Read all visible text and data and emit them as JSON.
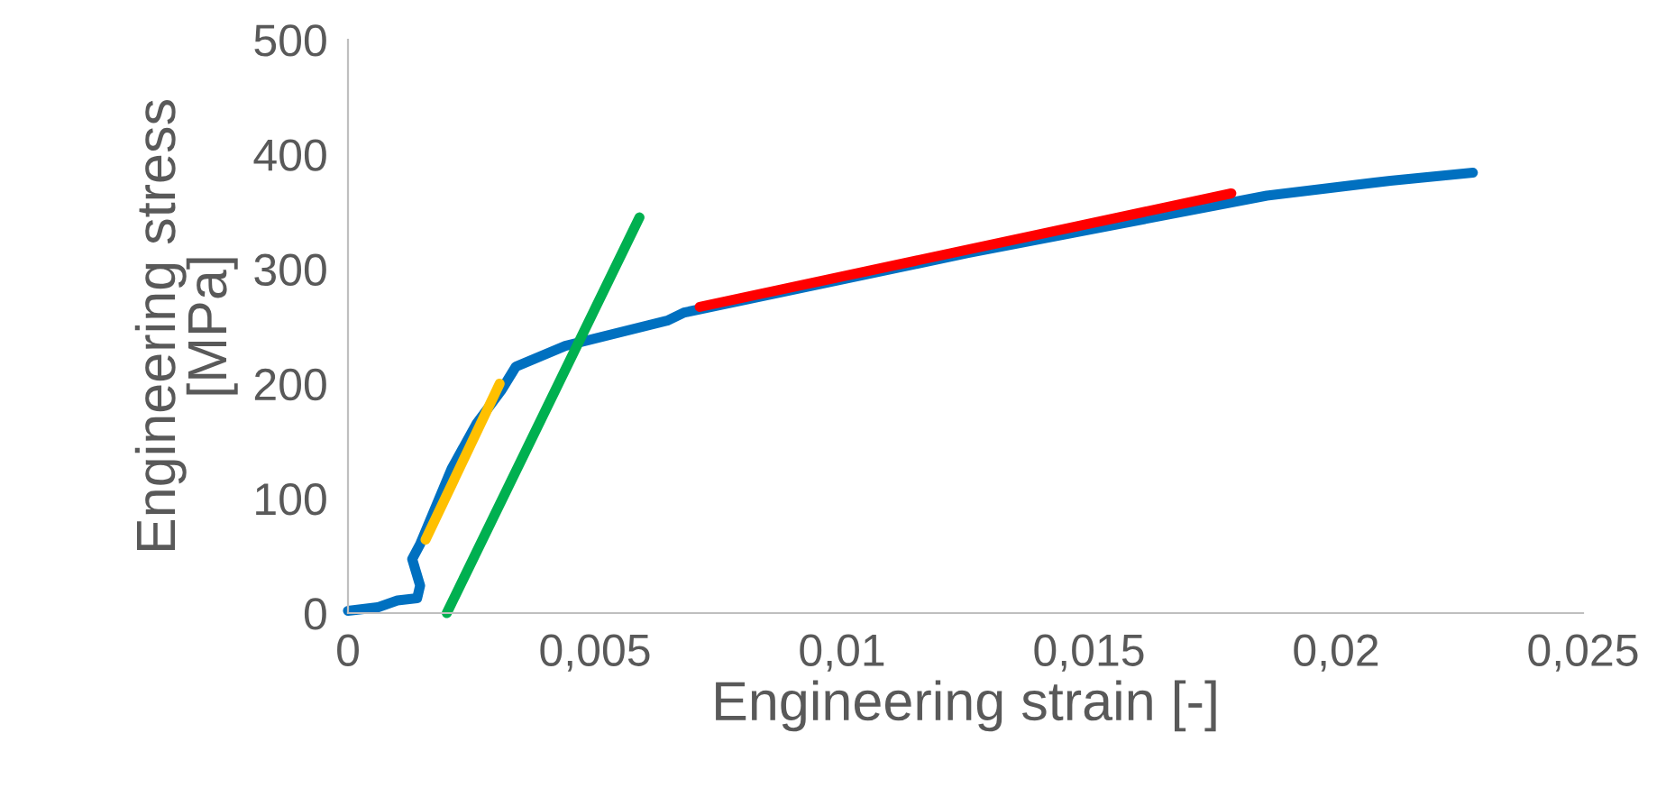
{
  "chart_data": {
    "type": "line",
    "xlabel": "Engineering strain [-]",
    "ylabel": "Engineering stress\n[MPa]",
    "xlim": [
      0,
      0.025
    ],
    "ylim": [
      0,
      500
    ],
    "xticks": [
      {
        "value": 0,
        "label": "0"
      },
      {
        "value": 0.005,
        "label": "0,005"
      },
      {
        "value": 0.01,
        "label": "0,01"
      },
      {
        "value": 0.015,
        "label": "0,015"
      },
      {
        "value": 0.02,
        "label": "0,02"
      },
      {
        "value": 0.025,
        "label": "0,025"
      }
    ],
    "yticks": [
      0,
      100,
      200,
      300,
      400,
      500
    ],
    "grid": false,
    "legend": false,
    "marker": "none",
    "line_style": "solid",
    "series": [
      {
        "color": "#0070c0",
        "x": [
          0,
          0.0006,
          0.001,
          0.0014,
          0.00146,
          0.0013,
          0.00146,
          0.0021,
          0.0026,
          0.0031,
          0.0034,
          0.0044,
          0.00646,
          0.0068,
          0.01255,
          0.0186,
          0.0211,
          0.02277
        ],
        "values": [
          2,
          5,
          11,
          13,
          24,
          47,
          60,
          126,
          165,
          194,
          215,
          233,
          255,
          262,
          314,
          364,
          377,
          384
        ]
      },
      {
        "color": "#ffc000",
        "x": [
          0.00157,
          0.00307
        ],
        "values": [
          64,
          200
        ]
      },
      {
        "color": "#00b050",
        "x": [
          0.002,
          0.0059
        ],
        "values": [
          0,
          345
        ]
      },
      {
        "color": "#ff0000",
        "x": [
          0.00712,
          0.01788
        ],
        "values": [
          267,
          366
        ]
      }
    ]
  }
}
